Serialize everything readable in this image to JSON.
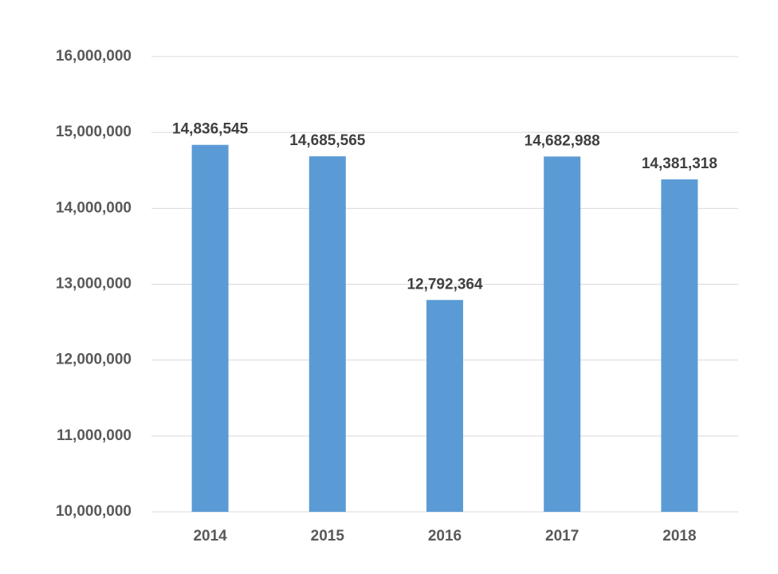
{
  "chart_data": {
    "type": "bar",
    "title": "",
    "xlabel": "",
    "ylabel": "",
    "categories": [
      "2014",
      "2015",
      "2016",
      "2017",
      "2018"
    ],
    "values": [
      14836545,
      14685565,
      12792364,
      14682988,
      14381318
    ],
    "value_labels": [
      "14,836,545",
      "14,685,565",
      "12,792,364",
      "14,682,988",
      "14,381,318"
    ],
    "ylim": [
      10000000,
      16000000
    ],
    "yticks": [
      10000000,
      11000000,
      12000000,
      13000000,
      14000000,
      15000000,
      16000000
    ],
    "ytick_labels": [
      "10,000,000",
      "11,000,000",
      "12,000,000",
      "13,000,000",
      "14,000,000",
      "15,000,000",
      "16,000,000"
    ],
    "grid": true,
    "legend": "none",
    "bar_color": "#5b9bd5"
  }
}
